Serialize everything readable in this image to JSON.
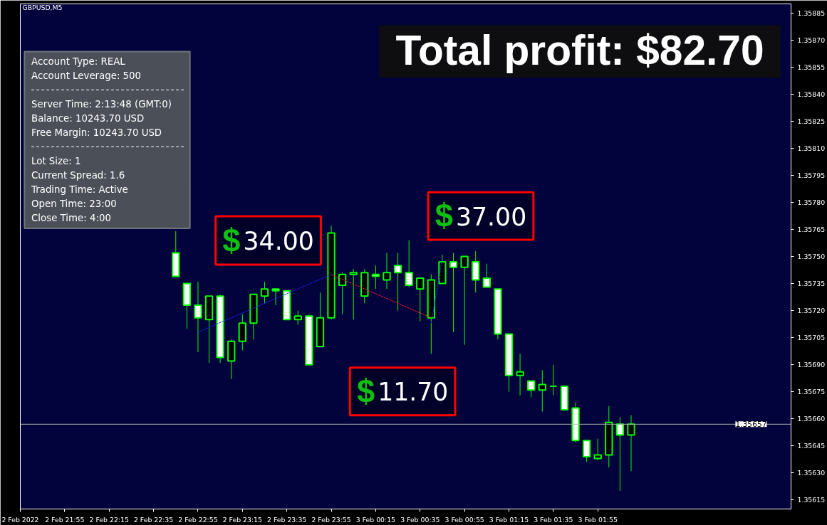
{
  "chart_data": {
    "type": "candlestick",
    "title": "GBPUSD,M5",
    "x": [
      "2022-02-02T22:45",
      "2022-02-02T22:50",
      "2022-02-02T22:55",
      "2022-02-02T23:00",
      "2022-02-02T23:05",
      "2022-02-02T23:10",
      "2022-02-02T23:15",
      "2022-02-02T23:20",
      "2022-02-02T23:25",
      "2022-02-02T23:30",
      "2022-02-02T23:35",
      "2022-02-02T23:40",
      "2022-02-02T23:45",
      "2022-02-02T23:50",
      "2022-02-02T23:55",
      "2022-02-03T00:00",
      "2022-02-03T00:05",
      "2022-02-03T00:10",
      "2022-02-03T00:15",
      "2022-02-03T00:20",
      "2022-02-03T00:25",
      "2022-02-03T00:30",
      "2022-02-03T00:35",
      "2022-02-03T00:40",
      "2022-02-03T00:45",
      "2022-02-03T00:50",
      "2022-02-03T00:55",
      "2022-02-03T01:00",
      "2022-02-03T01:05",
      "2022-02-03T01:10",
      "2022-02-03T01:15",
      "2022-02-03T01:20",
      "2022-02-03T01:25",
      "2022-02-03T01:30",
      "2022-02-03T01:35",
      "2022-02-03T01:40",
      "2022-02-03T01:45",
      "2022-02-03T01:50",
      "2022-02-03T01:55",
      "2022-02-03T02:00",
      "2022-02-03T02:05",
      "2022-02-03T02:10"
    ],
    "ohlc": [
      [
        1.35752,
        1.35764,
        1.35739,
        1.35739
      ],
      [
        1.35735,
        1.35735,
        1.3571,
        1.35723
      ],
      [
        1.35723,
        1.35736,
        1.35697,
        1.35716
      ],
      [
        1.35715,
        1.35728,
        1.35691,
        1.35728
      ],
      [
        1.35728,
        1.35729,
        1.35691,
        1.35694
      ],
      [
        1.35692,
        1.35704,
        1.35682,
        1.35703
      ],
      [
        1.35703,
        1.35718,
        1.35698,
        1.35713
      ],
      [
        1.35713,
        1.35729,
        1.35704,
        1.35729
      ],
      [
        1.35728,
        1.35736,
        1.35724,
        1.35732
      ],
      [
        1.35732,
        1.35732,
        1.35723,
        1.35731
      ],
      [
        1.35731,
        1.35731,
        1.35715,
        1.35715
      ],
      [
        1.35715,
        1.3572,
        1.35712,
        1.35717
      ],
      [
        1.35717,
        1.35718,
        1.3569,
        1.3569
      ],
      [
        1.357,
        1.3573,
        1.357,
        1.35716
      ],
      [
        1.35716,
        1.35767,
        1.35715,
        1.35763
      ],
      [
        1.35734,
        1.35741,
        1.35718,
        1.3574
      ],
      [
        1.3574,
        1.35743,
        1.35715,
        1.35741
      ],
      [
        1.35728,
        1.35743,
        1.35724,
        1.35741
      ],
      [
        1.3574,
        1.35745,
        1.35732,
        1.35739
      ],
      [
        1.35737,
        1.35752,
        1.35732,
        1.35741
      ],
      [
        1.35745,
        1.35752,
        1.3572,
        1.35741
      ],
      [
        1.35741,
        1.35759,
        1.35733,
        1.35734
      ],
      [
        1.35732,
        1.35738,
        1.35714,
        1.35738
      ],
      [
        1.35716,
        1.3574,
        1.35696,
        1.35737
      ],
      [
        1.35735,
        1.35751,
        1.35735,
        1.35747
      ],
      [
        1.35747,
        1.35752,
        1.35708,
        1.35744
      ],
      [
        1.35744,
        1.3575,
        1.35701,
        1.3575
      ],
      [
        1.35747,
        1.35753,
        1.3573,
        1.35737
      ],
      [
        1.35738,
        1.35746,
        1.35733,
        1.35733
      ],
      [
        1.35732,
        1.35732,
        1.35704,
        1.35707
      ],
      [
        1.35707,
        1.35707,
        1.35675,
        1.35684
      ],
      [
        1.35684,
        1.35696,
        1.35673,
        1.35686
      ],
      [
        1.35681,
        1.35681,
        1.35672,
        1.35676
      ],
      [
        1.35676,
        1.35687,
        1.35664,
        1.35679
      ],
      [
        1.35678,
        1.3569,
        1.35673,
        1.35678
      ],
      [
        1.35678,
        1.35678,
        1.35665,
        1.35665
      ],
      [
        1.35666,
        1.35669,
        1.35647,
        1.35648
      ],
      [
        1.35648,
        1.35648,
        1.35636,
        1.35639
      ],
      [
        1.35638,
        1.35649,
        1.35637,
        1.3564
      ],
      [
        1.3564,
        1.35667,
        1.35633,
        1.35658
      ],
      [
        1.35657,
        1.35661,
        1.3562,
        1.35651
      ],
      [
        1.35651,
        1.35662,
        1.35631,
        1.35657
      ]
    ],
    "series": [
      {
        "type": "line",
        "color": "#2020ff",
        "line_style": "dotted",
        "x": [
          "2022-02-02T22:55",
          "2022-02-02T23:55"
        ],
        "values": [
          1.35708,
          1.3574
        ]
      },
      {
        "type": "line",
        "color": "#ff2020",
        "line_style": "dotted",
        "x": [
          "2022-02-02T23:55",
          "2022-02-03T00:40"
        ],
        "values": [
          1.3574,
          1.35716
        ]
      },
      {
        "type": "line",
        "color": "#2020ff",
        "line_style": "dotted",
        "x": [
          "2022-02-03T00:40",
          "2022-02-03T00:45"
        ],
        "values": [
          1.35713,
          1.35749
        ]
      }
    ],
    "xlim": [
      "2022-02-02T21:35",
      "2022-02-03T03:22"
    ],
    "xticks": [
      {
        "value": "2022-02-02T21:35",
        "label": "2 Feb 2022"
      },
      {
        "value": "2022-02-02T21:55",
        "label": "2 Feb 21:55"
      },
      {
        "value": "2022-02-02T22:15",
        "label": "2 Feb 22:15"
      },
      {
        "value": "2022-02-02T22:35",
        "label": "2 Feb 22:35"
      },
      {
        "value": "2022-02-02T22:55",
        "label": "2 Feb 22:55"
      },
      {
        "value": "2022-02-02T23:15",
        "label": "2 Feb 23:15"
      },
      {
        "value": "2022-02-02T23:35",
        "label": "2 Feb 23:35"
      },
      {
        "value": "2022-02-02T23:55",
        "label": "2 Feb 23:55"
      },
      {
        "value": "2022-02-03T00:15",
        "label": "3 Feb 00:15"
      },
      {
        "value": "2022-02-03T00:35",
        "label": "3 Feb 00:35"
      },
      {
        "value": "2022-02-03T00:55",
        "label": "3 Feb 00:55"
      },
      {
        "value": "2022-02-03T01:15",
        "label": "3 Feb 01:15"
      },
      {
        "value": "2022-02-03T01:35",
        "label": "3 Feb 01:35"
      },
      {
        "value": "2022-02-03T01:55",
        "label": "3 Feb 01:55"
      }
    ],
    "ylim": [
      1.3561,
      1.3589
    ],
    "yticks": [
      {
        "value": 1.35615,
        "label": "1.35615"
      },
      {
        "value": 1.3563,
        "label": "1.35630"
      },
      {
        "value": 1.35645,
        "label": "1.35645"
      },
      {
        "value": 1.3566,
        "label": "1.35660"
      },
      {
        "value": 1.35675,
        "label": "1.35675"
      },
      {
        "value": 1.3569,
        "label": "1.35690"
      },
      {
        "value": 1.35705,
        "label": "1.35705"
      },
      {
        "value": 1.3572,
        "label": "1.35720"
      },
      {
        "value": 1.35735,
        "label": "1.35735"
      },
      {
        "value": 1.3575,
        "label": "1.35750"
      },
      {
        "value": 1.35765,
        "label": "1.35765"
      },
      {
        "value": 1.3578,
        "label": "1.35780"
      },
      {
        "value": 1.35795,
        "label": "1.35795"
      },
      {
        "value": 1.3581,
        "label": "1.35810"
      },
      {
        "value": 1.35825,
        "label": "1.35825"
      },
      {
        "value": 1.3584,
        "label": "1.35840"
      },
      {
        "value": 1.35855,
        "label": "1.35855"
      },
      {
        "value": 1.3587,
        "label": "1.35870"
      },
      {
        "value": 1.35885,
        "label": "1.35885"
      }
    ],
    "ref_lines": [
      {
        "axis": "y",
        "value": 1.35657,
        "label": "1.35657",
        "color": "#b0b0b0"
      }
    ],
    "annotations": [
      "Total profit: $82.70",
      "$34.00",
      "$37.00",
      "$11.70",
      "Account Type: REAL",
      "Account Leverage: 500",
      "Server Time: 2:13:48 (GMT:0)",
      "Balance: 10243.70 USD",
      "Free Margin: 10243.70 USD",
      "Lot Size: 1",
      "Current Spread: 1.6",
      "Trading Time: Active",
      "Open Time: 23:00",
      "Close Time: 4:00"
    ],
    "grid": false
  }
}
